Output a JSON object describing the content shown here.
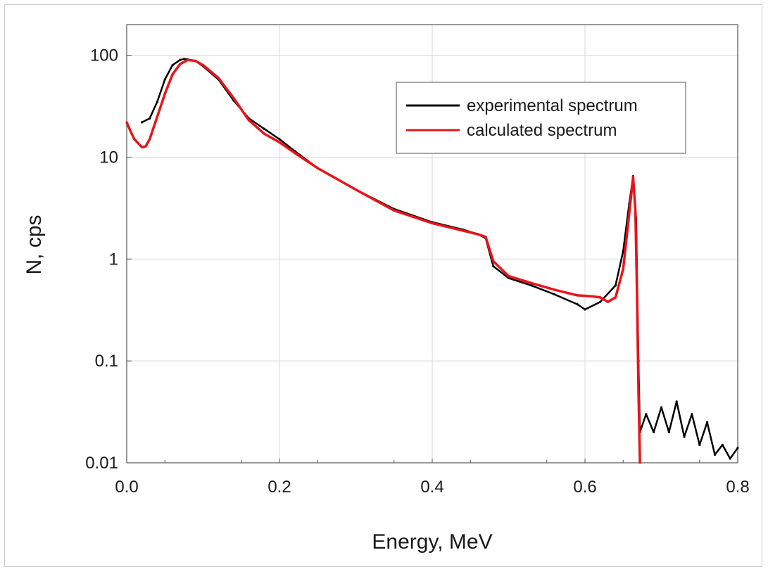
{
  "chart_data": {
    "type": "line",
    "xlabel": "Energy, MeV",
    "ylabel": "N, cps",
    "xlim": [
      0.0,
      0.8
    ],
    "ylim": [
      0.01,
      200
    ],
    "yscale": "log",
    "grid": true,
    "legend_position": "top-right",
    "x_ticks": [
      "0.0",
      "0.2",
      "0.4",
      "0.6",
      "0.8"
    ],
    "y_ticks": [
      "0.01",
      "0.1",
      "1",
      "10",
      "100"
    ],
    "series": [
      {
        "name": "experimental spectrum",
        "color": "#000000",
        "points": [
          [
            0.02,
            22
          ],
          [
            0.03,
            24
          ],
          [
            0.04,
            35
          ],
          [
            0.05,
            58
          ],
          [
            0.06,
            80
          ],
          [
            0.07,
            90
          ],
          [
            0.075,
            92
          ],
          [
            0.08,
            91
          ],
          [
            0.09,
            88
          ],
          [
            0.1,
            78
          ],
          [
            0.12,
            58
          ],
          [
            0.14,
            36
          ],
          [
            0.16,
            24
          ],
          [
            0.18,
            19
          ],
          [
            0.2,
            15
          ],
          [
            0.22,
            11.5
          ],
          [
            0.25,
            7.8
          ],
          [
            0.3,
            4.8
          ],
          [
            0.35,
            3.1
          ],
          [
            0.4,
            2.3
          ],
          [
            0.44,
            1.95
          ],
          [
            0.46,
            1.75
          ],
          [
            0.47,
            1.6
          ],
          [
            0.48,
            0.85
          ],
          [
            0.5,
            0.65
          ],
          [
            0.53,
            0.55
          ],
          [
            0.56,
            0.45
          ],
          [
            0.59,
            0.36
          ],
          [
            0.6,
            0.32
          ],
          [
            0.62,
            0.38
          ],
          [
            0.64,
            0.55
          ],
          [
            0.65,
            1.2
          ],
          [
            0.658,
            3.5
          ],
          [
            0.663,
            6.5
          ],
          [
            0.667,
            2.5
          ],
          [
            0.67,
            0.1
          ],
          [
            0.672,
            0.02
          ],
          [
            0.68,
            0.03
          ],
          [
            0.69,
            0.02
          ],
          [
            0.7,
            0.035
          ],
          [
            0.71,
            0.02
          ],
          [
            0.72,
            0.04
          ],
          [
            0.73,
            0.018
          ],
          [
            0.74,
            0.03
          ],
          [
            0.75,
            0.015
          ],
          [
            0.76,
            0.025
          ],
          [
            0.77,
            0.012
          ],
          [
            0.78,
            0.015
          ],
          [
            0.79,
            0.011
          ],
          [
            0.8,
            0.014
          ]
        ]
      },
      {
        "name": "calculated spectrum",
        "color": "#e8141a",
        "points": [
          [
            0.0,
            22
          ],
          [
            0.005,
            18
          ],
          [
            0.01,
            15
          ],
          [
            0.02,
            12.5
          ],
          [
            0.025,
            12.8
          ],
          [
            0.03,
            15
          ],
          [
            0.04,
            25
          ],
          [
            0.05,
            42
          ],
          [
            0.06,
            65
          ],
          [
            0.07,
            82
          ],
          [
            0.08,
            90
          ],
          [
            0.09,
            88
          ],
          [
            0.1,
            80
          ],
          [
            0.12,
            60
          ],
          [
            0.14,
            38
          ],
          [
            0.16,
            23
          ],
          [
            0.18,
            17
          ],
          [
            0.2,
            14
          ],
          [
            0.22,
            11
          ],
          [
            0.25,
            7.8
          ],
          [
            0.3,
            4.8
          ],
          [
            0.35,
            3.0
          ],
          [
            0.4,
            2.25
          ],
          [
            0.44,
            1.9
          ],
          [
            0.46,
            1.75
          ],
          [
            0.47,
            1.65
          ],
          [
            0.48,
            0.95
          ],
          [
            0.5,
            0.68
          ],
          [
            0.53,
            0.58
          ],
          [
            0.56,
            0.5
          ],
          [
            0.59,
            0.44
          ],
          [
            0.61,
            0.43
          ],
          [
            0.62,
            0.42
          ],
          [
            0.63,
            0.38
          ],
          [
            0.64,
            0.42
          ],
          [
            0.65,
            0.8
          ],
          [
            0.658,
            2.8
          ],
          [
            0.663,
            6.4
          ],
          [
            0.666,
            3.0
          ],
          [
            0.668,
            0.5
          ],
          [
            0.67,
            0.05
          ],
          [
            0.672,
            0.01
          ]
        ]
      }
    ]
  }
}
